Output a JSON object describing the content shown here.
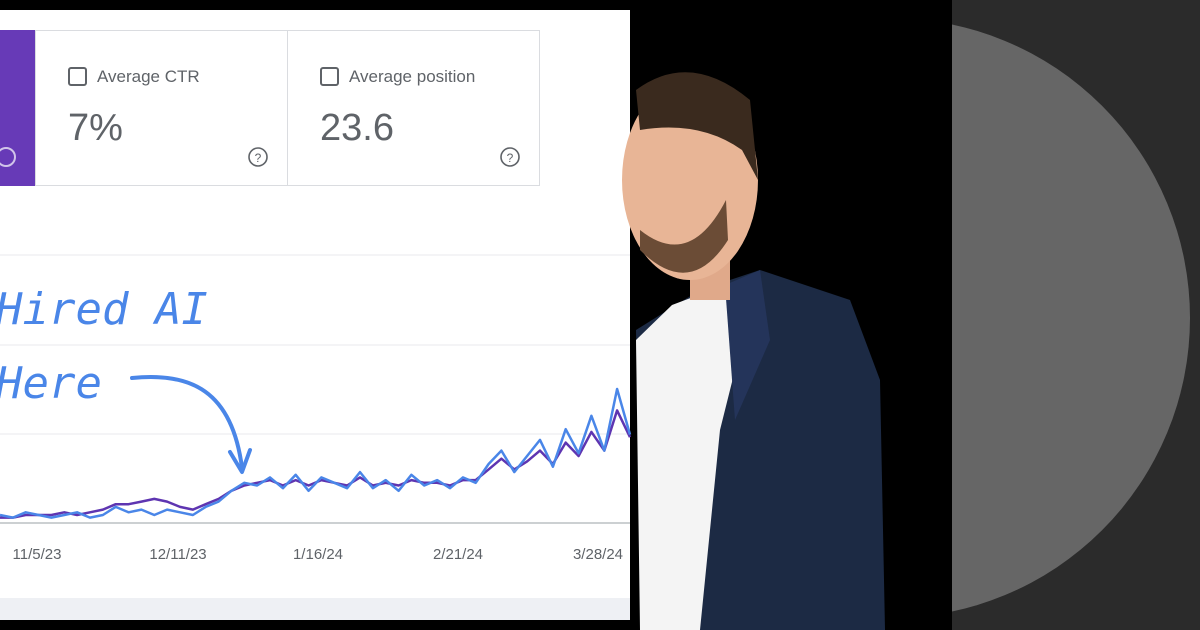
{
  "metrics": [
    {
      "label": "Average CTR",
      "value": "7%"
    },
    {
      "label": "Average position",
      "value": "23.6"
    }
  ],
  "annotation": [
    "Hired AI",
    "Here"
  ],
  "chart": {
    "type": "line",
    "x_labels": [
      "11/5/23",
      "12/11/23",
      "1/16/24",
      "2/21/24",
      "3/28/24"
    ],
    "ylim": [
      0,
      100
    ],
    "series": [
      {
        "color": "#4a86e8",
        "values": [
          3,
          2,
          4,
          3,
          2,
          3,
          4,
          2,
          3,
          6,
          4,
          5,
          3,
          5,
          4,
          3,
          6,
          8,
          12,
          15,
          14,
          17,
          13,
          18,
          12,
          17,
          15,
          13,
          19,
          13,
          16,
          12,
          18,
          14,
          16,
          13,
          17,
          15,
          22,
          27,
          19,
          25,
          31,
          21,
          35,
          26,
          40,
          27,
          50,
          33
        ]
      },
      {
        "color": "#5e35b1",
        "values": [
          2,
          2,
          3,
          3,
          3,
          4,
          3,
          4,
          5,
          7,
          7,
          8,
          9,
          8,
          6,
          5,
          7,
          9,
          12,
          14,
          15,
          16,
          14,
          16,
          14,
          16,
          15,
          14,
          17,
          14,
          15,
          14,
          16,
          15,
          15,
          14,
          16,
          16,
          20,
          24,
          20,
          23,
          27,
          22,
          30,
          25,
          34,
          27,
          42,
          32
        ]
      }
    ]
  }
}
